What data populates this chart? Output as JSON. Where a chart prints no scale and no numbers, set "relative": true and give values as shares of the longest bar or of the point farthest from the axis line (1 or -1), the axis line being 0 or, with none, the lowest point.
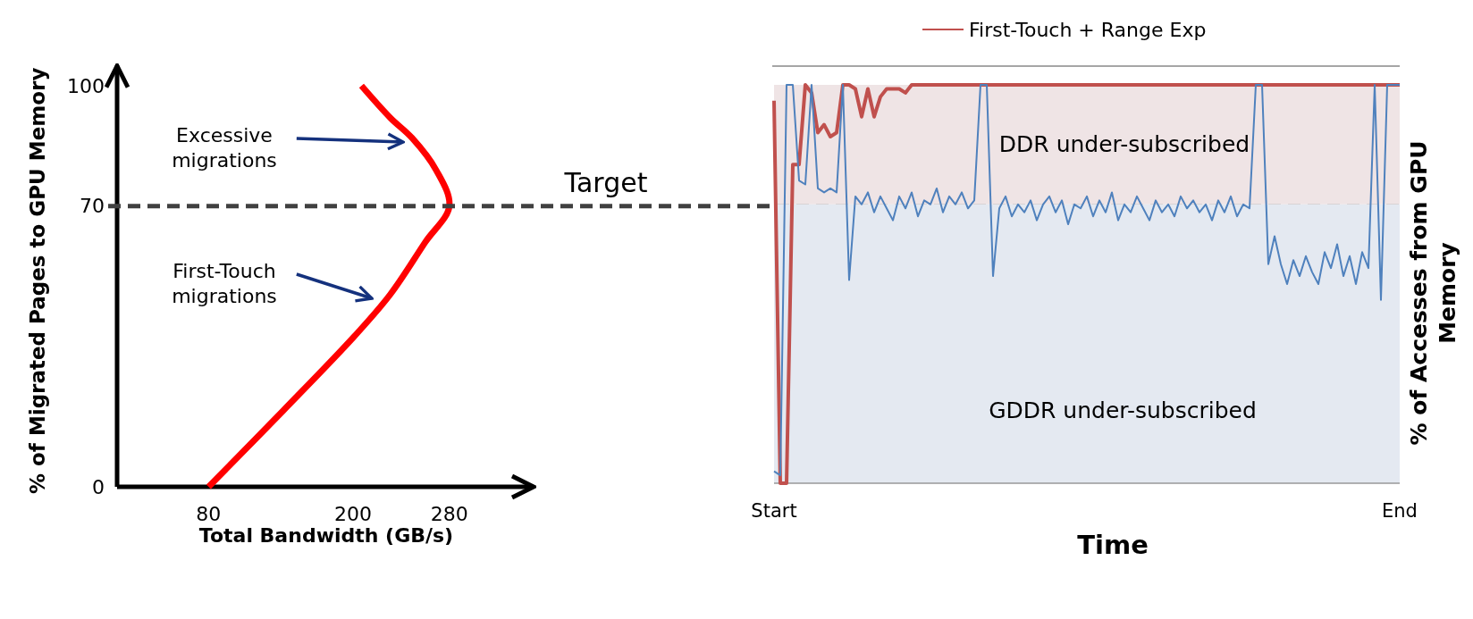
{
  "chart_data": [
    {
      "type": "line",
      "xlabel": "Total Bandwidth (GB/s)",
      "ylabel": "% of Migrated Pages to GPU Memory",
      "xlim": [
        4,
        350
      ],
      "xticks": [
        80,
        200,
        280
      ],
      "ylim": [
        0,
        105
      ],
      "yticks": [
        0,
        70,
        100
      ],
      "series": [
        {
          "color": "#ff0000",
          "x": [
            80,
            142,
            201,
            231,
            260,
            280,
            269,
            249,
            231,
            207
          ],
          "values": [
            0,
            19,
            37.5,
            48,
            61,
            70,
            79,
            87,
            92,
            100
          ]
        }
      ],
      "ref_lines": [
        {
          "axis": "y",
          "value": 70,
          "label": "Target",
          "color": "#404040",
          "line_style": "dashed"
        }
      ],
      "annotations": [
        "Excessive migrations",
        "First-Touch migrations"
      ]
    },
    {
      "type": "line",
      "xlabel": "Time",
      "ylabel": "% of Accesses from GPU Memory",
      "relative": true,
      "categories": [
        "Start",
        null,
        null,
        null,
        null,
        null,
        null,
        null,
        null,
        null,
        null,
        null,
        null,
        null,
        null,
        null,
        null,
        null,
        null,
        null,
        null,
        null,
        null,
        null,
        null,
        null,
        null,
        null,
        null,
        null,
        null,
        null,
        null,
        null,
        null,
        null,
        null,
        null,
        null,
        null,
        null,
        null,
        null,
        null,
        null,
        null,
        null,
        null,
        null,
        null,
        null,
        null,
        null,
        null,
        null,
        null,
        null,
        null,
        null,
        null,
        null,
        null,
        null,
        null,
        null,
        null,
        null,
        null,
        null,
        null,
        null,
        null,
        null,
        null,
        null,
        null,
        null,
        null,
        null,
        null,
        null,
        null,
        null,
        null,
        null,
        null,
        null,
        null,
        null,
        null,
        null,
        null,
        null,
        null,
        null,
        null,
        null,
        null,
        null,
        null,
        "End"
      ],
      "legend": "top",
      "bands": [
        {
          "axis": "y",
          "from": 0.7,
          "to": 1,
          "label": "DDR under-subscribed",
          "color": "#efe4e5"
        },
        {
          "axis": "y",
          "from": 0,
          "to": 0.7,
          "label": "GDDR under-subscribed",
          "color": "#e4e9f1"
        }
      ],
      "series": [
        {
          "name": "First-Touch + Range Exp",
          "color": "#c0504d",
          "values": [
            0.96,
            0,
            0,
            0.8,
            0.8,
            1,
            0.98,
            0.88,
            0.9,
            0.87,
            0.88,
            1,
            1,
            0.99,
            0.92,
            0.99,
            0.92,
            0.97,
            0.99,
            0.99,
            0.99,
            0.98,
            1,
            1,
            1,
            1,
            1,
            1,
            1,
            1,
            1,
            1,
            1,
            1,
            1,
            1,
            1,
            1,
            1,
            1,
            1,
            1,
            1,
            1,
            1,
            1,
            1,
            1,
            1,
            1,
            1,
            1,
            1,
            1,
            1,
            1,
            1,
            1,
            1,
            1,
            1,
            1,
            1,
            1,
            1,
            1,
            1,
            1,
            1,
            1,
            1,
            1,
            1,
            1,
            1,
            1,
            1,
            1,
            1,
            1,
            1,
            1,
            1,
            1,
            1,
            1,
            1,
            1,
            1,
            1,
            1,
            1,
            1,
            1,
            1,
            1,
            1,
            1,
            1,
            1,
            1
          ]
        },
        {
          "color": "#4f81bd",
          "values": [
            0.03,
            0.02,
            1,
            1,
            0.76,
            0.75,
            1,
            0.74,
            0.73,
            0.74,
            0.73,
            1,
            0.51,
            0.72,
            0.7,
            0.73,
            0.68,
            0.72,
            0.69,
            0.66,
            0.72,
            0.69,
            0.73,
            0.67,
            0.71,
            0.7,
            0.74,
            0.68,
            0.72,
            0.7,
            0.73,
            0.69,
            0.71,
            1,
            1,
            0.52,
            0.69,
            0.72,
            0.67,
            0.7,
            0.68,
            0.71,
            0.66,
            0.7,
            0.72,
            0.68,
            0.71,
            0.65,
            0.7,
            0.69,
            0.72,
            0.67,
            0.71,
            0.68,
            0.73,
            0.66,
            0.7,
            0.68,
            0.72,
            0.69,
            0.66,
            0.71,
            0.68,
            0.7,
            0.67,
            0.72,
            0.69,
            0.71,
            0.68,
            0.7,
            0.66,
            0.71,
            0.68,
            0.72,
            0.67,
            0.7,
            0.69,
            1,
            1,
            0.55,
            0.62,
            0.55,
            0.5,
            0.56,
            0.52,
            0.57,
            0.53,
            0.5,
            0.58,
            0.54,
            0.6,
            0.52,
            0.57,
            0.5,
            0.58,
            0.54,
            1,
            0.46,
            1,
            1,
            1
          ]
        }
      ]
    }
  ]
}
